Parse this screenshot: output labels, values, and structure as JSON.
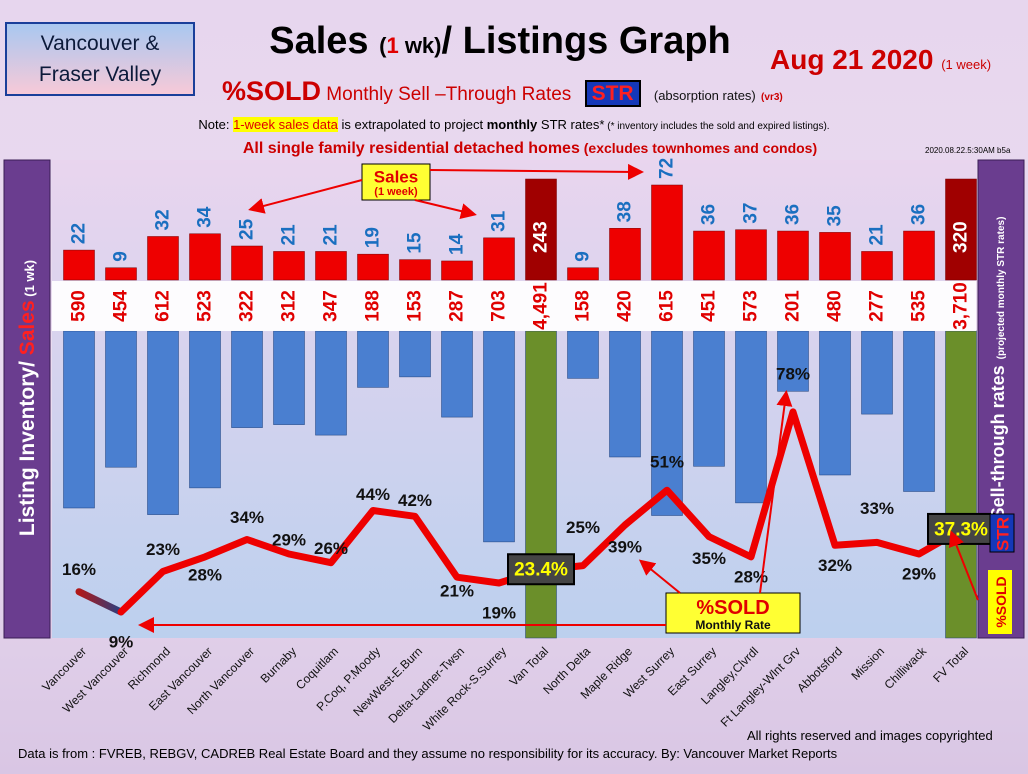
{
  "region": {
    "line1": "Vancouver &",
    "line2": "Fraser Valley"
  },
  "title": {
    "part1": "Sales ",
    "paren_open": "(",
    "one": "1",
    "wk": " wk)",
    "part2": "/ Listings Graph"
  },
  "date": {
    "main": "Aug 21  2020",
    "period": "(1 week)"
  },
  "subtitle": {
    "sold": "%SOLD",
    "text": "Monthly Sell –Through Rates",
    "str": "STR",
    "absorption": "(absorption rates)",
    "version": "(vr3)"
  },
  "note": {
    "prefix": "Note: ",
    "highlight": "1-week sales data",
    "middle": " is extrapolated to project ",
    "bold": "monthly",
    "after": " STR rates*",
    "small": " (* inventory includes the sold and expired listings)."
  },
  "headline": {
    "main": "All single family residential detached homes",
    "small": " (excludes townhomes and condos)"
  },
  "stamp": "2020.08.22.5:30AM b5a",
  "footer": {
    "rights": "All rights reserved and  images copyrighted",
    "source": "Data is from : FVREB, REBGV, CADREB Real Estate Board and they assume no responsibility for its accuracy. By: Vancouver Market Reports"
  },
  "colors": {
    "sales_bar": "#ee0000",
    "inventory_bar": "#4a7fd0",
    "total_sales_bar": "#a00000",
    "total_inventory_bar": "#6b8f2a",
    "sales_value_text": "#1a6fc0",
    "inventory_value_text": "#e00000",
    "str_line": "#ee0000",
    "left_panel": "#6a3d8f",
    "right_panel": "#6a3d8f"
  },
  "chart_data": {
    "type": "bar",
    "title": "Sales (1 wk)/ Listings Graph",
    "categories": [
      "Vancouver",
      "West Vancouver",
      "Richmond",
      "East Vancouver",
      "North Vancouver",
      "Burnaby",
      "Coquitlam",
      "P.Coq, P.Moody",
      "NewWest-E.Burn",
      "Delta-Ladner-Twsn",
      "White Rock-S.Surrey",
      "Van Total",
      "North Delta",
      "Maple Ridge",
      "West Surrey",
      "East Surrey",
      "Langley,Clvrdl",
      "Ft Langley-Wlnt Grv",
      "Abbotsford",
      "Mission",
      "Chilliwack",
      "FV Total"
    ],
    "series": [
      {
        "name": "Sales (1 wk)",
        "values": [
          22,
          9,
          32,
          34,
          25,
          21,
          21,
          19,
          15,
          14,
          31,
          243,
          9,
          38,
          72,
          36,
          37,
          36,
          35,
          21,
          36,
          320
        ]
      },
      {
        "name": "Listing Inventory",
        "values": [
          590,
          454,
          612,
          523,
          322,
          312,
          347,
          188,
          153,
          287,
          703,
          4491,
          158,
          420,
          615,
          451,
          573,
          201,
          480,
          277,
          535,
          3710
        ]
      },
      {
        "name": "%SOLD Monthly Rate",
        "values": [
          16,
          9,
          23,
          28,
          34,
          29,
          26,
          44,
          42,
          21,
          19,
          23.4,
          25,
          39,
          51,
          35,
          28,
          78,
          32,
          33,
          29,
          37.3
        ]
      }
    ],
    "pct_labels": [
      "16%",
      "9%",
      "23%",
      "28%",
      "34%",
      "29%",
      "26%",
      "44%",
      "42%",
      "21%",
      "19%",
      "23.4%",
      "25%",
      "39%",
      "51%",
      "35%",
      "28%",
      "78%",
      "32%",
      "33%",
      "29%",
      "37.3%"
    ],
    "inventory_labels": [
      "590",
      "454",
      "612",
      "523",
      "322",
      "312",
      "347",
      "188",
      "153",
      "287",
      "703",
      "4,491",
      "158",
      "420",
      "615",
      "451",
      "573",
      "201",
      "480",
      "277",
      "535",
      "3,710"
    ],
    "total_indices": [
      11,
      21
    ],
    "ylabel_left": {
      "inventory": "Listing Inventory",
      "slash": "/ ",
      "sales": "Sales",
      "wk": " (1 wk)"
    },
    "ylabel_right": {
      "main": "Sell-through rates",
      "small": "(projected monthly STR rates)",
      "str": "STR",
      "sold": "%SOLD"
    },
    "annotations": {
      "sales_callout_line1": "Sales",
      "sales_callout_line2": "(1 week)",
      "sold_callout_line1": "%SOLD",
      "sold_callout_line2": "Monthly Rate"
    }
  }
}
